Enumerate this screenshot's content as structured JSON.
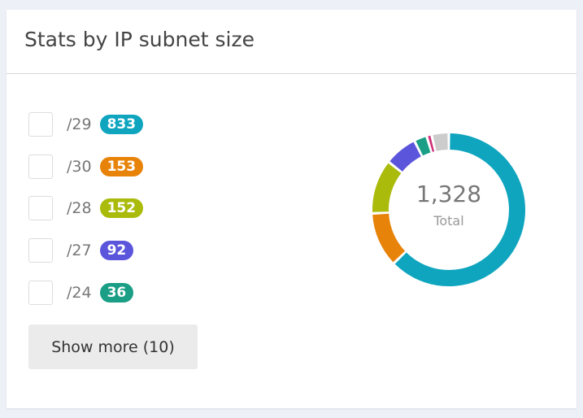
{
  "header": {
    "title": "Stats by IP subnet size"
  },
  "chart_data": {
    "type": "donut",
    "categories": [
      "/29",
      "/30",
      "/28",
      "/27",
      "/24",
      null,
      null
    ],
    "values": [
      833,
      153,
      152,
      92,
      36,
      14,
      48
    ],
    "colors": [
      "#0fa5bf",
      "#e8830a",
      "#aabb0c",
      "#5b55dc",
      "#1a9e86",
      "#d12d78",
      "#cccccc"
    ],
    "center": {
      "value": 1328,
      "label": "1,328"
    },
    "center_caption": "Total"
  },
  "button": {
    "label": "Show more (10)"
  }
}
